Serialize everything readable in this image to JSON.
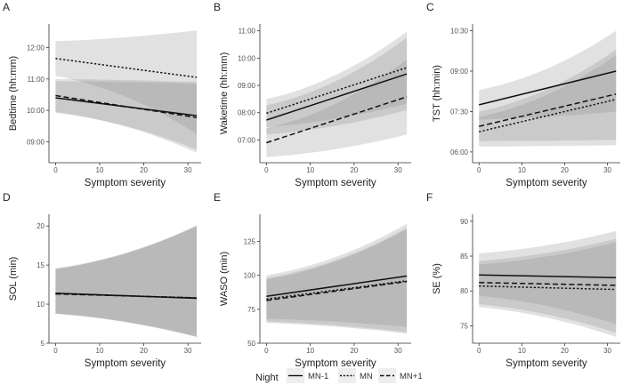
{
  "legend": {
    "title": "Night",
    "items": [
      {
        "label": "MN-1",
        "dash": "solid"
      },
      {
        "label": "MN",
        "dash": "dotted"
      },
      {
        "label": "MN+1",
        "dash": "dashed"
      }
    ]
  },
  "chart_data": [
    {
      "type": "line",
      "panel": "A",
      "xlabel": "Symptom severity",
      "ylabel": "Bedtime (hh:mm)",
      "xlim": [
        -1.5,
        33
      ],
      "xticks": [
        0,
        10,
        20,
        30
      ],
      "ylim": [
        8.333,
        12.75
      ],
      "yticks": [
        9,
        10,
        11,
        12
      ],
      "ytick_labels": [
        "09:00",
        "10:00",
        "11:00",
        "12:00"
      ],
      "series": [
        {
          "name": "MN-1",
          "dash": "solid",
          "x": [
            0,
            32
          ],
          "y": [
            10.4,
            9.83
          ],
          "lower": [
            9.92,
            8.75
          ],
          "upper": [
            10.93,
            10.85
          ]
        },
        {
          "name": "MN",
          "dash": "dotted",
          "x": [
            0,
            32
          ],
          "y": [
            11.65,
            11.05
          ],
          "lower": [
            11.1,
            9.25
          ],
          "upper": [
            12.2,
            12.55
          ]
        },
        {
          "name": "MN+1",
          "dash": "dashed",
          "x": [
            0,
            32
          ],
          "y": [
            10.47,
            9.77
          ],
          "lower": [
            9.95,
            8.65
          ],
          "upper": [
            11.0,
            10.9
          ]
        }
      ]
    },
    {
      "type": "line",
      "panel": "B",
      "xlabel": "Symptom severity",
      "ylabel": "Waketime (hh:mm)",
      "xlim": [
        -1.5,
        33
      ],
      "xticks": [
        0,
        10,
        20,
        30
      ],
      "ylim": [
        6.167,
        11.25
      ],
      "yticks": [
        7,
        8,
        9,
        10,
        11
      ],
      "ytick_labels": [
        "07:00",
        "08:00",
        "09:00",
        "10:00",
        "11:00"
      ],
      "series": [
        {
          "name": "MN-1",
          "dash": "solid",
          "x": [
            0,
            32
          ],
          "y": [
            7.73,
            9.42
          ],
          "lower": [
            7.2,
            8.1
          ],
          "upper": [
            8.27,
            10.75
          ]
        },
        {
          "name": "MN",
          "dash": "dotted",
          "x": [
            0,
            32
          ],
          "y": [
            7.98,
            9.65
          ],
          "lower": [
            7.47,
            8.33
          ],
          "upper": [
            8.5,
            10.97
          ]
        },
        {
          "name": "MN+1",
          "dash": "dashed",
          "x": [
            0,
            32
          ],
          "y": [
            6.9,
            8.58
          ],
          "lower": [
            6.37,
            7.2
          ],
          "upper": [
            7.43,
            9.95
          ]
        }
      ]
    },
    {
      "type": "line",
      "panel": "C",
      "xlabel": "Symptom severity",
      "ylabel": "TST (hh:min)",
      "xlim": [
        -1.5,
        33
      ],
      "xticks": [
        0,
        10,
        20,
        30
      ],
      "ylim": [
        5.6,
        10.75
      ],
      "yticks": [
        6,
        7.5,
        9,
        10.5
      ],
      "ytick_labels": [
        "06:00",
        "07:30",
        "09:00",
        "10:30"
      ],
      "series": [
        {
          "name": "MN-1",
          "dash": "solid",
          "x": [
            0,
            32
          ],
          "y": [
            7.75,
            9.0
          ],
          "lower": [
            7.2,
            7.5
          ],
          "upper": [
            8.3,
            10.5
          ]
        },
        {
          "name": "MN",
          "dash": "dotted",
          "x": [
            0,
            32
          ],
          "y": [
            6.75,
            7.95
          ],
          "lower": [
            6.2,
            6.25
          ],
          "upper": [
            7.3,
            9.6
          ]
        },
        {
          "name": "MN+1",
          "dash": "dashed",
          "x": [
            0,
            32
          ],
          "y": [
            6.95,
            8.15
          ],
          "lower": [
            6.4,
            6.45
          ],
          "upper": [
            7.5,
            9.8
          ]
        }
      ]
    },
    {
      "type": "line",
      "panel": "D",
      "xlabel": "Symptom severity",
      "ylabel": "SOL (min)",
      "xlim": [
        -1.5,
        33
      ],
      "xticks": [
        0,
        10,
        20,
        30
      ],
      "ylim": [
        5,
        21.5
      ],
      "yticks": [
        5,
        10,
        15,
        20
      ],
      "ytick_labels": [
        "5",
        "10",
        "15",
        "20"
      ],
      "series": [
        {
          "name": "MN-1",
          "dash": "solid",
          "x": [
            0,
            32
          ],
          "y": [
            11.4,
            10.75
          ],
          "lower": [
            8.8,
            5.8
          ],
          "upper": [
            14.6,
            20.1
          ]
        },
        {
          "name": "MN",
          "dash": "dotted",
          "x": [
            0,
            32
          ],
          "y": [
            11.35,
            10.8
          ],
          "lower": [
            8.8,
            5.9
          ],
          "upper": [
            14.5,
            20.0
          ]
        },
        {
          "name": "MN+1",
          "dash": "dashed",
          "x": [
            0,
            32
          ],
          "y": [
            11.3,
            10.8
          ],
          "lower": [
            8.75,
            5.8
          ],
          "upper": [
            14.5,
            20.0
          ]
        }
      ]
    },
    {
      "type": "line",
      "panel": "E",
      "xlabel": "Symptom severity",
      "ylabel": "WASO (min)",
      "xlim": [
        -1.5,
        33
      ],
      "xticks": [
        0,
        10,
        20,
        30
      ],
      "ylim": [
        50,
        145
      ],
      "yticks": [
        50,
        75,
        100,
        125
      ],
      "ytick_labels": [
        "50",
        "75",
        "100",
        "125"
      ],
      "series": [
        {
          "name": "MN-1",
          "dash": "solid",
          "x": [
            0,
            32
          ],
          "y": [
            84.5,
            99.5
          ],
          "lower": [
            68,
            62
          ],
          "upper": [
            100,
            138
          ]
        },
        {
          "name": "MN",
          "dash": "dotted",
          "x": [
            0,
            32
          ],
          "y": [
            82.5,
            96
          ],
          "lower": [
            66,
            58
          ],
          "upper": [
            98,
            135
          ]
        },
        {
          "name": "MN+1",
          "dash": "dashed",
          "x": [
            0,
            32
          ],
          "y": [
            81.5,
            95.5
          ],
          "lower": [
            65,
            57
          ],
          "upper": [
            97,
            134
          ]
        }
      ]
    },
    {
      "type": "line",
      "panel": "F",
      "xlabel": "Symptom severity",
      "ylabel": "SE (%)",
      "xlim": [
        -1.5,
        33
      ],
      "xticks": [
        0,
        10,
        20,
        30
      ],
      "ylim": [
        72.5,
        91
      ],
      "yticks": [
        75,
        80,
        85,
        90
      ],
      "ytick_labels": [
        "75",
        "80",
        "85",
        "90"
      ],
      "series": [
        {
          "name": "MN-1",
          "dash": "solid",
          "x": [
            0,
            32
          ],
          "y": [
            82.3,
            81.9
          ],
          "lower": [
            79.3,
            75.2
          ],
          "upper": [
            85.4,
            88.6
          ]
        },
        {
          "name": "MN",
          "dash": "dotted",
          "x": [
            0,
            32
          ],
          "y": [
            80.7,
            80.2
          ],
          "lower": [
            77.7,
            73.4
          ],
          "upper": [
            83.8,
            87.0
          ]
        },
        {
          "name": "MN+1",
          "dash": "dashed",
          "x": [
            0,
            32
          ],
          "y": [
            81.2,
            80.8
          ],
          "lower": [
            78.1,
            74.0
          ],
          "upper": [
            84.3,
            87.5
          ]
        }
      ]
    }
  ]
}
